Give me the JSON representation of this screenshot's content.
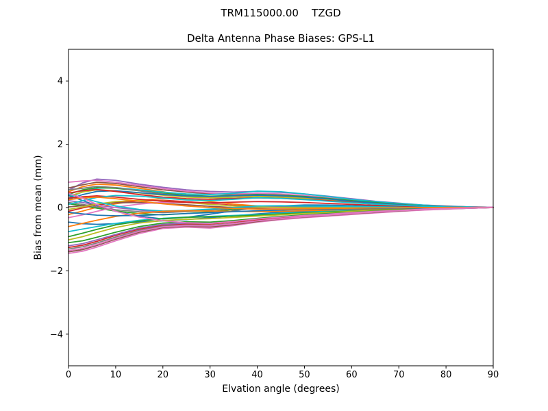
{
  "figure": {
    "title": "TRM115000.00    TZGD",
    "subtitle": "Delta Antenna Phase Biases: GPS-L1"
  },
  "chart_data": {
    "type": "line",
    "title": "TRM115000.00    TZGD",
    "subtitle": "Delta Antenna Phase Biases: GPS-L1",
    "xlabel": "Elvation angle (degrees)",
    "ylabel": "Bias from mean (mm)",
    "xlim": [
      0,
      90
    ],
    "ylim": [
      -5,
      5
    ],
    "xticks": [
      0,
      10,
      20,
      30,
      40,
      50,
      60,
      70,
      80,
      90
    ],
    "xtick_labels": [
      "0",
      "10",
      "20",
      "30",
      "40",
      "50",
      "60",
      "70",
      "80",
      "90"
    ],
    "yticks": [
      -4,
      -2,
      0,
      2,
      4
    ],
    "ytick_labels": [
      "−4",
      "−2",
      "0",
      "2",
      "4"
    ],
    "grid": false,
    "legend": false,
    "background": "#ffffff",
    "axis_color": "#000000",
    "line_width": 1.8,
    "x": [
      0,
      3,
      6,
      10,
      15,
      20,
      25,
      30,
      35,
      40,
      45,
      50,
      55,
      60,
      65,
      70,
      75,
      80,
      85,
      90
    ],
    "series": [
      {
        "color": "#9467bd",
        "values": [
          0.55,
          0.78,
          0.9,
          0.86,
          0.74,
          0.64,
          0.56,
          0.51,
          0.49,
          0.51,
          0.48,
          0.43,
          0.36,
          0.28,
          0.2,
          0.14,
          0.08,
          0.05,
          0.02,
          0.01
        ]
      },
      {
        "color": "#8c564b",
        "values": [
          0.62,
          0.72,
          0.8,
          0.76,
          0.66,
          0.56,
          0.49,
          0.43,
          0.41,
          0.43,
          0.41,
          0.37,
          0.3,
          0.24,
          0.17,
          0.11,
          0.07,
          0.04,
          0.02,
          0.0
        ]
      },
      {
        "color": "#ff7f0e",
        "values": [
          0.5,
          0.66,
          0.74,
          0.71,
          0.61,
          0.5,
          0.36,
          0.31,
          0.33,
          0.36,
          0.34,
          0.3,
          0.26,
          0.2,
          0.15,
          0.1,
          0.06,
          0.03,
          0.01,
          0.0
        ]
      },
      {
        "color": "#e377c2",
        "values": [
          0.8,
          0.84,
          0.86,
          0.8,
          0.7,
          0.6,
          0.52,
          0.46,
          0.43,
          0.45,
          0.43,
          0.38,
          0.32,
          0.25,
          0.18,
          0.12,
          0.07,
          0.04,
          0.02,
          0.01
        ]
      },
      {
        "color": "#17becf",
        "values": [
          0.3,
          0.5,
          0.61,
          0.63,
          0.56,
          0.49,
          0.43,
          0.41,
          0.45,
          0.52,
          0.5,
          0.43,
          0.35,
          0.26,
          0.19,
          0.13,
          0.08,
          0.04,
          0.02,
          0.0
        ]
      },
      {
        "color": "#2ca02c",
        "values": [
          0.42,
          0.56,
          0.63,
          0.61,
          0.53,
          0.45,
          0.39,
          0.36,
          0.38,
          0.41,
          0.39,
          0.35,
          0.29,
          0.22,
          0.16,
          0.1,
          0.06,
          0.03,
          0.01,
          0.0
        ]
      },
      {
        "color": "#7f7f7f",
        "values": [
          0.56,
          0.61,
          0.67,
          0.63,
          0.53,
          0.43,
          0.36,
          0.31,
          0.29,
          0.31,
          0.3,
          0.27,
          0.22,
          0.17,
          0.12,
          0.08,
          0.05,
          0.03,
          0.01,
          0.0
        ]
      },
      {
        "color": "#bcbd22",
        "values": [
          0.36,
          0.49,
          0.56,
          0.53,
          0.46,
          0.39,
          0.33,
          0.31,
          0.33,
          0.35,
          0.33,
          0.29,
          0.24,
          0.18,
          0.13,
          0.09,
          0.05,
          0.03,
          0.01,
          0.0
        ]
      },
      {
        "color": "#1f77b4",
        "values": [
          0.26,
          0.41,
          0.51,
          0.53,
          0.47,
          0.41,
          0.37,
          0.35,
          0.37,
          0.39,
          0.37,
          0.33,
          0.27,
          0.2,
          0.14,
          0.09,
          0.05,
          0.03,
          0.01,
          0.0
        ]
      },
      {
        "color": "#d62728",
        "values": [
          0.46,
          0.53,
          0.57,
          0.51,
          0.41,
          0.33,
          0.28,
          0.26,
          0.28,
          0.31,
          0.29,
          0.26,
          0.22,
          0.16,
          0.11,
          0.07,
          0.04,
          0.02,
          0.01,
          0.0
        ]
      },
      {
        "color": "#1f77b4",
        "values": [
          0.38,
          0.22,
          0.06,
          -0.12,
          -0.27,
          -0.36,
          -0.31,
          -0.21,
          -0.1,
          0.0,
          0.05,
          0.08,
          0.08,
          0.06,
          0.04,
          0.03,
          0.02,
          0.01,
          0.0,
          0.0
        ]
      },
      {
        "color": "#ff7f0e",
        "values": [
          -0.22,
          -0.11,
          0.01,
          0.12,
          0.22,
          0.29,
          0.26,
          0.19,
          0.11,
          0.05,
          0.02,
          0.0,
          -0.02,
          -0.02,
          -0.01,
          0.0,
          0.0,
          0.0,
          0.0,
          0.0
        ]
      },
      {
        "color": "#2ca02c",
        "values": [
          0.12,
          0.06,
          -0.02,
          -0.11,
          -0.19,
          -0.23,
          -0.19,
          -0.13,
          -0.06,
          0.0,
          0.03,
          0.04,
          0.04,
          0.03,
          0.02,
          0.01,
          0.0,
          0.0,
          0.0,
          0.0
        ]
      },
      {
        "color": "#d62728",
        "values": [
          -0.12,
          -0.01,
          0.08,
          0.16,
          0.21,
          0.23,
          0.19,
          0.13,
          0.07,
          0.02,
          0.0,
          -0.01,
          -0.02,
          -0.01,
          0.0,
          0.0,
          0.0,
          0.0,
          0.0,
          0.0
        ]
      },
      {
        "color": "#9467bd",
        "values": [
          0.22,
          0.16,
          0.08,
          0.0,
          -0.08,
          -0.13,
          -0.11,
          -0.06,
          -0.02,
          0.02,
          0.04,
          0.04,
          0.03,
          0.02,
          0.01,
          0.0,
          0.0,
          0.0,
          0.0,
          0.0
        ]
      },
      {
        "color": "#8c564b",
        "values": [
          0.02,
          0.06,
          0.11,
          0.15,
          0.16,
          0.13,
          0.09,
          0.04,
          0.0,
          -0.02,
          -0.03,
          -0.03,
          -0.02,
          -0.01,
          0.0,
          0.0,
          0.0,
          0.0,
          0.0,
          0.0
        ]
      },
      {
        "color": "#e377c2",
        "values": [
          -0.32,
          -0.23,
          -0.12,
          0.01,
          0.11,
          0.17,
          0.16,
          0.11,
          0.05,
          0.0,
          -0.02,
          -0.03,
          -0.03,
          -0.02,
          -0.01,
          0.0,
          0.0,
          0.0,
          0.0,
          0.0
        ]
      },
      {
        "color": "#7f7f7f",
        "values": [
          0.16,
          0.1,
          0.02,
          -0.07,
          -0.13,
          -0.16,
          -0.13,
          -0.08,
          -0.03,
          0.0,
          0.02,
          0.02,
          0.02,
          0.01,
          0.0,
          0.0,
          0.0,
          0.0,
          0.0,
          0.0
        ]
      },
      {
        "color": "#bcbd22",
        "values": [
          -0.06,
          0.02,
          0.11,
          0.19,
          0.23,
          0.21,
          0.16,
          0.1,
          0.05,
          0.02,
          0.0,
          -0.01,
          -0.01,
          0.0,
          0.0,
          0.0,
          0.0,
          0.0,
          0.0,
          0.0
        ]
      },
      {
        "color": "#17becf",
        "values": [
          0.42,
          0.31,
          0.18,
          0.05,
          -0.06,
          -0.11,
          -0.09,
          -0.05,
          0.0,
          0.05,
          0.06,
          0.05,
          0.04,
          0.03,
          0.02,
          0.01,
          0.0,
          0.0,
          0.0,
          0.0
        ]
      },
      {
        "color": "#1f77b4",
        "values": [
          -0.46,
          -0.51,
          -0.53,
          -0.51,
          -0.46,
          -0.42,
          -0.38,
          -0.32,
          -0.26,
          -0.2,
          -0.15,
          -0.12,
          -0.1,
          -0.08,
          -0.06,
          -0.04,
          -0.02,
          -0.01,
          0.0,
          0.0
        ]
      },
      {
        "color": "#17becf",
        "values": [
          -0.76,
          -0.68,
          -0.6,
          -0.5,
          -0.4,
          -0.34,
          -0.3,
          -0.28,
          -0.25,
          -0.22,
          -0.18,
          -0.15,
          -0.12,
          -0.09,
          -0.07,
          -0.05,
          -0.03,
          -0.02,
          -0.01,
          0.0
        ]
      },
      {
        "color": "#ff7f0e",
        "values": [
          -0.6,
          -0.5,
          -0.4,
          -0.28,
          -0.18,
          -0.12,
          -0.1,
          -0.11,
          -0.12,
          -0.13,
          -0.12,
          -0.1,
          -0.08,
          -0.06,
          -0.05,
          -0.03,
          -0.02,
          -0.01,
          0.0,
          0.0
        ]
      },
      {
        "color": "#2ca02c",
        "values": [
          -0.92,
          -0.81,
          -0.69,
          -0.55,
          -0.43,
          -0.35,
          -0.31,
          -0.29,
          -0.27,
          -0.24,
          -0.2,
          -0.17,
          -0.14,
          -0.11,
          -0.08,
          -0.06,
          -0.04,
          -0.02,
          -0.01,
          0.0
        ]
      },
      {
        "color": "#bcbd22",
        "values": [
          -1.02,
          -0.92,
          -0.79,
          -0.63,
          -0.49,
          -0.41,
          -0.37,
          -0.35,
          -0.31,
          -0.27,
          -0.23,
          -0.19,
          -0.16,
          -0.12,
          -0.09,
          -0.07,
          -0.05,
          -0.03,
          -0.01,
          0.0
        ]
      },
      {
        "color": "#e377c2",
        "values": [
          -1.45,
          -1.38,
          -1.25,
          -1.05,
          -0.82,
          -0.66,
          -0.62,
          -0.65,
          -0.57,
          -0.46,
          -0.38,
          -0.32,
          -0.27,
          -0.22,
          -0.17,
          -0.12,
          -0.08,
          -0.05,
          -0.02,
          0.0
        ]
      },
      {
        "color": "#8c564b",
        "values": [
          -1.4,
          -1.33,
          -1.2,
          -1.0,
          -0.78,
          -0.63,
          -0.59,
          -0.61,
          -0.54,
          -0.44,
          -0.36,
          -0.3,
          -0.25,
          -0.2,
          -0.15,
          -0.11,
          -0.07,
          -0.04,
          -0.02,
          0.0
        ]
      },
      {
        "color": "#7f7f7f",
        "values": [
          -1.31,
          -1.24,
          -1.12,
          -0.93,
          -0.72,
          -0.58,
          -0.54,
          -0.56,
          -0.5,
          -0.41,
          -0.34,
          -0.28,
          -0.23,
          -0.18,
          -0.14,
          -0.1,
          -0.06,
          -0.04,
          -0.02,
          0.0
        ]
      },
      {
        "color": "#d62728",
        "values": [
          -1.26,
          -1.19,
          -1.07,
          -0.88,
          -0.68,
          -0.55,
          -0.51,
          -0.52,
          -0.46,
          -0.38,
          -0.31,
          -0.26,
          -0.22,
          -0.17,
          -0.13,
          -0.09,
          -0.06,
          -0.03,
          -0.01,
          0.0
        ]
      },
      {
        "color": "#9467bd",
        "values": [
          -1.21,
          -1.14,
          -1.02,
          -0.85,
          -0.65,
          -0.53,
          -0.49,
          -0.5,
          -0.44,
          -0.36,
          -0.3,
          -0.25,
          -0.21,
          -0.16,
          -0.12,
          -0.09,
          -0.05,
          -0.03,
          -0.01,
          0.0
        ]
      },
      {
        "color": "#2ca02c",
        "values": [
          -1.11,
          -1.05,
          -0.94,
          -0.78,
          -0.6,
          -0.49,
          -0.45,
          -0.46,
          -0.41,
          -0.34,
          -0.28,
          -0.23,
          -0.19,
          -0.15,
          -0.11,
          -0.08,
          -0.05,
          -0.03,
          -0.01,
          0.0
        ]
      },
      {
        "color": "#e377c2",
        "values": [
          -1.36,
          -1.29,
          -1.17,
          -0.97,
          -0.75,
          -0.61,
          -0.57,
          -0.58,
          -0.51,
          -0.42,
          -0.35,
          -0.29,
          -0.24,
          -0.19,
          -0.14,
          -0.1,
          -0.07,
          -0.04,
          -0.02,
          0.0
        ]
      },
      {
        "color": "#d62728",
        "values": [
          0.3,
          0.34,
          0.37,
          0.33,
          0.26,
          0.2,
          0.16,
          0.15,
          0.17,
          0.19,
          0.18,
          0.16,
          0.13,
          0.1,
          0.07,
          0.05,
          0.03,
          0.02,
          0.01,
          0.0
        ]
      },
      {
        "color": "#1f77b4",
        "values": [
          -0.15,
          -0.2,
          -0.24,
          -0.26,
          -0.25,
          -0.22,
          -0.19,
          -0.16,
          -0.13,
          -0.1,
          -0.08,
          -0.06,
          -0.05,
          -0.04,
          -0.03,
          -0.02,
          -0.01,
          0.0,
          0.0,
          0.0
        ]
      },
      {
        "color": "#17becf",
        "values": [
          0.1,
          0.22,
          0.32,
          0.38,
          0.36,
          0.3,
          0.24,
          0.22,
          0.26,
          0.31,
          0.29,
          0.25,
          0.2,
          0.15,
          0.11,
          0.07,
          0.04,
          0.02,
          0.01,
          0.0
        ]
      },
      {
        "color": "#ff7f0e",
        "values": [
          0.25,
          0.3,
          0.33,
          0.28,
          0.2,
          0.12,
          0.05,
          0.0,
          -0.03,
          -0.05,
          -0.05,
          -0.04,
          -0.03,
          -0.02,
          -0.01,
          -0.01,
          0.0,
          0.0,
          0.0,
          0.0
        ]
      },
      {
        "color": "#e377c2",
        "values": [
          0.45,
          0.3,
          0.1,
          -0.12,
          -0.3,
          -0.42,
          -0.48,
          -0.5,
          -0.44,
          -0.36,
          -0.3,
          -0.25,
          -0.21,
          -0.16,
          -0.12,
          -0.09,
          -0.05,
          -0.03,
          -0.01,
          0.0
        ]
      }
    ]
  }
}
